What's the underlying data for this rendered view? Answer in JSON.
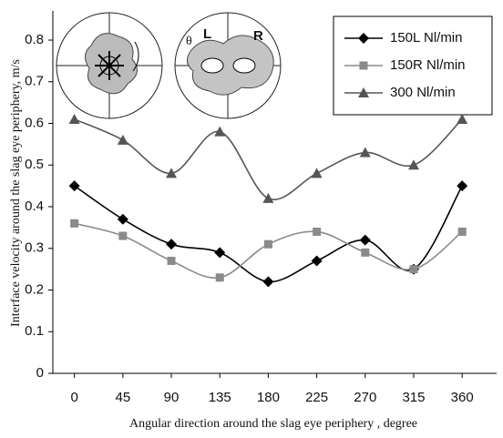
{
  "chart_data": {
    "type": "line",
    "x_label": "Angular direction around the slag eye periphery , degree",
    "y_label": "Interface velocity around the slag eye periphery, m/s",
    "x": [
      0,
      45,
      90,
      135,
      180,
      225,
      270,
      315,
      360
    ],
    "series": [
      {
        "name": "150L Nl/min",
        "color": "#000000",
        "marker": "diamond",
        "values": [
          0.45,
          0.37,
          0.31,
          0.29,
          0.22,
          0.27,
          0.32,
          0.25,
          0.45
        ]
      },
      {
        "name": "150R Nl/min",
        "color": "#8a8a8a",
        "marker": "square",
        "values": [
          0.36,
          0.33,
          0.27,
          0.23,
          0.31,
          0.34,
          0.29,
          0.25,
          0.34
        ]
      },
      {
        "name": "300 Nl/min",
        "color": "#555555",
        "marker": "triangle",
        "values": [
          0.61,
          0.56,
          0.48,
          0.58,
          0.42,
          0.48,
          0.53,
          0.5,
          0.61
        ]
      }
    ],
    "xlim": [
      -20,
      392
    ],
    "ylim": [
      0,
      0.87
    ],
    "xticks": [
      0,
      45,
      90,
      135,
      180,
      225,
      270,
      315,
      360
    ],
    "yticks": [
      0,
      0.1,
      0.2,
      0.3,
      0.4,
      0.5,
      0.6,
      0.7,
      0.8
    ],
    "grid": false,
    "legend": "upper right",
    "inset_labels": [
      "θ",
      "L",
      "R"
    ]
  }
}
